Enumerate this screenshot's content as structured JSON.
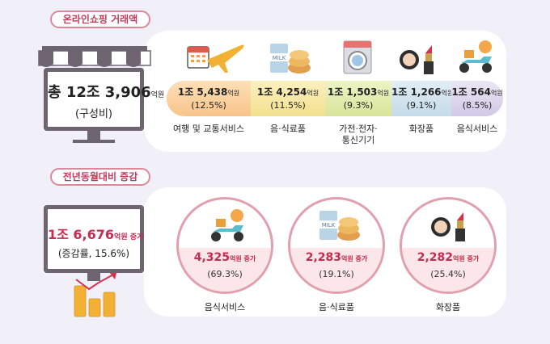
{
  "section1": {
    "title": "온라인쇼핑 거래액",
    "total": {
      "prefix": "총 12조 3,906",
      "unit": "억원",
      "sub": "(구성비)"
    },
    "categories": [
      {
        "value": "1조 5,438",
        "unit": "억원",
        "pct": "(12.5%)",
        "label": "여행 및 교통서비스",
        "color": "#f7c48a"
      },
      {
        "value": "1조 4,254",
        "unit": "억원",
        "pct": "(11.5%)",
        "label": "음·식료품",
        "color": "#f3e08e"
      },
      {
        "value": "1조 1,503",
        "unit": "억원",
        "pct": "(9.3%)",
        "label": "가전·전자·\n통신기기",
        "color": "#d8e59a"
      },
      {
        "value": "1조 1,266",
        "unit": "억원",
        "pct": "(9.1%)",
        "label": "화장품",
        "color": "#c4dbe8"
      },
      {
        "value": "1조 564",
        "unit": "억원",
        "pct": "(8.5%)",
        "label": "음식서비스",
        "color": "#d2c9e6"
      }
    ]
  },
  "section2": {
    "title": "전년동월대비 증감",
    "total": {
      "value": "1조 6,676",
      "unit": "억원 증가",
      "sub": "(증감률, 15.6%)"
    },
    "items": [
      {
        "value": "4,325",
        "unit": "억원 증가",
        "pct": "(69.3%)",
        "label": "음식서비스"
      },
      {
        "value": "2,283",
        "unit": "억원 증가",
        "pct": "(19.1%)",
        "label": "음·식료품"
      },
      {
        "value": "2,282",
        "unit": "억원 증가",
        "pct": "(25.4%)",
        "label": "화장품"
      }
    ]
  },
  "icons": {
    "travel": "airplane-calendar-icon",
    "food": "milk-bread-icon",
    "appliance": "washing-machine-icon",
    "cosmetics": "lipstick-compact-icon",
    "delivery": "delivery-scooter-icon",
    "store": "storefront-awning-icon",
    "coins": "coin-stack-chart-icon"
  },
  "colors": {
    "accent": "#c42d4f",
    "frame": "#6d6470",
    "pill_border": "#d9899a"
  }
}
